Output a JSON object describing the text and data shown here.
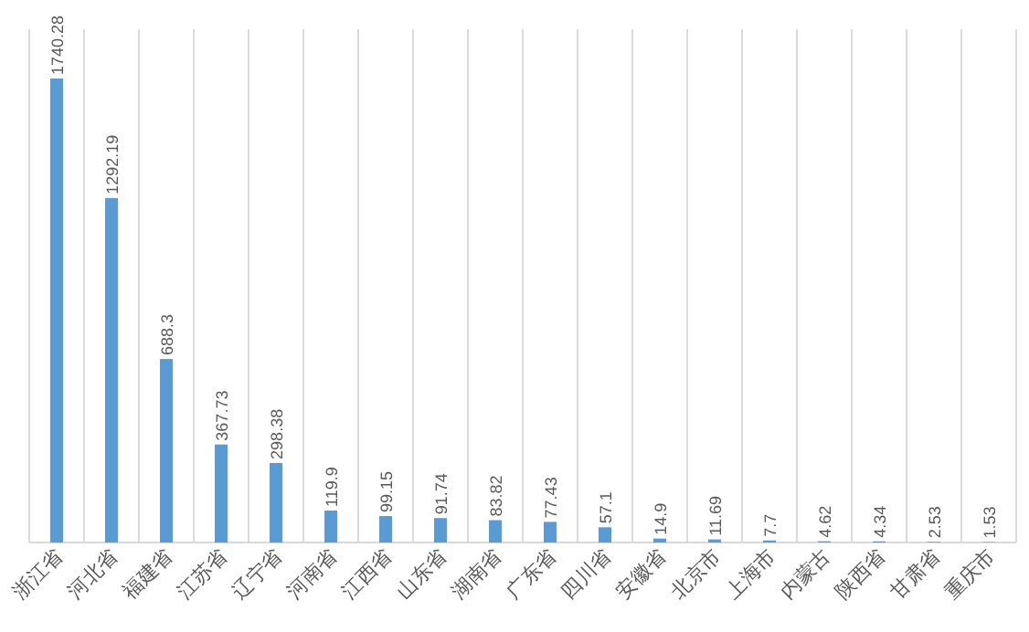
{
  "chart_data": {
    "type": "bar",
    "categories": [
      "浙江省",
      "河北省",
      "福建省",
      "江苏省",
      "辽宁省",
      "河南省",
      "江西省",
      "山东省",
      "湖南省",
      "广东省",
      "四川省",
      "安徽省",
      "北京市",
      "上海市",
      "内蒙古",
      "陕西省",
      "甘肃省",
      "重庆市"
    ],
    "values": [
      1740.28,
      1292.19,
      688.3,
      367.73,
      298.38,
      119.9,
      99.15,
      91.74,
      83.82,
      77.43,
      57.1,
      14.9,
      11.69,
      7.7,
      4.62,
      4.34,
      2.53,
      1.53
    ],
    "color": "#5b9bd5",
    "data_labels": true,
    "grid": "x"
  }
}
